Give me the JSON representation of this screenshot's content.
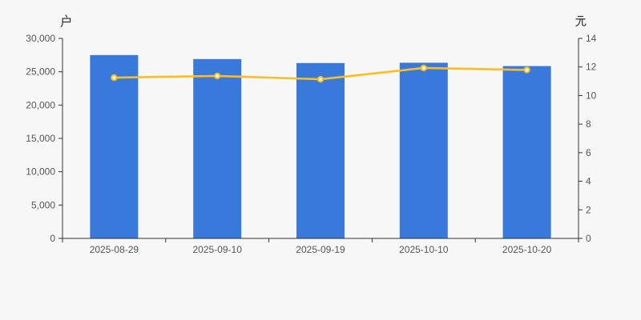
{
  "page": {
    "background": "#F7F7F7"
  },
  "chart_data": {
    "type": "bar",
    "categories": [
      "2025-08-29",
      "2025-09-10",
      "2025-09-19",
      "2025-10-10",
      "2025-10-20"
    ],
    "series": [
      {
        "id": "bar-series",
        "type": "bar",
        "axis": "left",
        "color": "#3879DB",
        "values": [
          27500,
          26900,
          26300,
          26350,
          25850
        ]
      },
      {
        "id": "line-series",
        "type": "line",
        "axis": "right",
        "color": "#FBBE1E",
        "point_fill": "#FFFFFF",
        "values": [
          11.25,
          11.37,
          11.14,
          11.93,
          11.79
        ]
      }
    ],
    "left_axis": {
      "title": "户",
      "min": 0,
      "max": 30000,
      "tick_step": 5000,
      "tick_labels": [
        "0",
        "5,000",
        "10,000",
        "15,000",
        "20,000",
        "25,000",
        "30,000"
      ]
    },
    "right_axis": {
      "title": "元",
      "min": 0,
      "max": 14,
      "tick_step": 2,
      "tick_labels": [
        "0",
        "2",
        "4",
        "6",
        "8",
        "10",
        "12",
        "14"
      ]
    },
    "grid": false,
    "legend": "none",
    "styles": {
      "axis_color": "#333333",
      "label_color": "#555555",
      "background": "#F7F7F7"
    }
  }
}
